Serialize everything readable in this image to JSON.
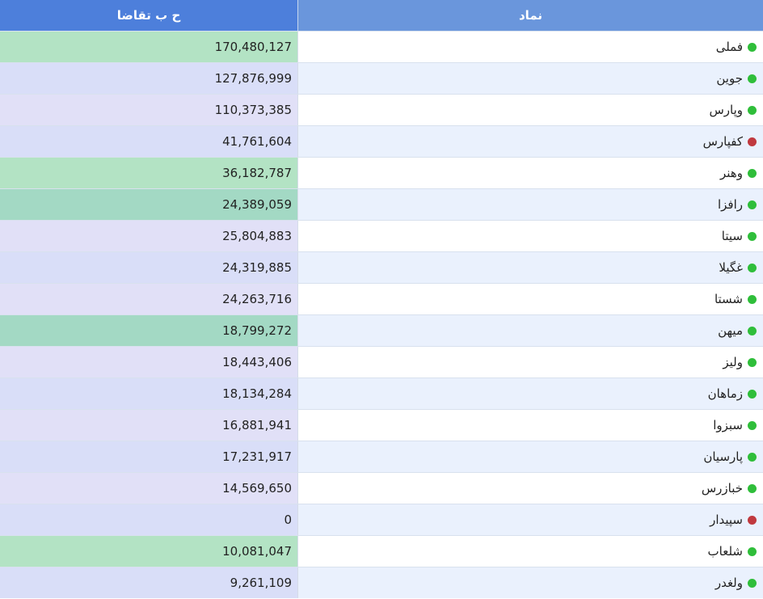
{
  "table": {
    "headers": {
      "symbol": "نماد",
      "volume": "ح ب تقاضا"
    },
    "colors": {
      "status_green": "#2fbe3a",
      "status_red": "#c0393f",
      "vol_green": "#b3e3c4",
      "vol_teal": "#a3d9c4",
      "vol_lavender": "#e1e0f7",
      "vol_blue_lavender": "#d9def8",
      "header_symbol": "#6a96dc",
      "header_volume": "#4d7fdb"
    },
    "rows": [
      {
        "symbol": "فملی",
        "status": "green",
        "volume": "170,480,127",
        "vol_color": "#b3e3c4"
      },
      {
        "symbol": "جوین",
        "status": "green",
        "volume": "127,876,999",
        "vol_color": "#d9def8"
      },
      {
        "symbol": "وپارس",
        "status": "green",
        "volume": "110,373,385",
        "vol_color": "#e1e0f7"
      },
      {
        "symbol": "کفپارس",
        "status": "red",
        "volume": "41,761,604",
        "vol_color": "#d9def8"
      },
      {
        "symbol": "وهنر",
        "status": "green",
        "volume": "36,182,787",
        "vol_color": "#b3e3c4"
      },
      {
        "symbol": "رافزا",
        "status": "green",
        "volume": "24,389,059",
        "vol_color": "#a3d9c4"
      },
      {
        "symbol": "سیتا",
        "status": "green",
        "volume": "25,804,883",
        "vol_color": "#e1e0f7"
      },
      {
        "symbol": "غگیلا",
        "status": "green",
        "volume": "24,319,885",
        "vol_color": "#d9def8"
      },
      {
        "symbol": "شستا",
        "status": "green",
        "volume": "24,263,716",
        "vol_color": "#e1e0f7"
      },
      {
        "symbol": "میهن",
        "status": "green",
        "volume": "18,799,272",
        "vol_color": "#a3d9c4"
      },
      {
        "symbol": "ولیز",
        "status": "green",
        "volume": "18,443,406",
        "vol_color": "#e1e0f7"
      },
      {
        "symbol": "زماهان",
        "status": "green",
        "volume": "18,134,284",
        "vol_color": "#d9def8"
      },
      {
        "symbol": "سبزوا",
        "status": "green",
        "volume": "16,881,941",
        "vol_color": "#e1e0f7"
      },
      {
        "symbol": "پارسیان",
        "status": "green",
        "volume": "17,231,917",
        "vol_color": "#d9def8"
      },
      {
        "symbol": "خبازرس",
        "status": "green",
        "volume": "14,569,650",
        "vol_color": "#e1e0f7"
      },
      {
        "symbol": "سپیدار",
        "status": "red",
        "volume": "0",
        "vol_color": "#d9def8"
      },
      {
        "symbol": "شلعاب",
        "status": "green",
        "volume": "10,081,047",
        "vol_color": "#b3e3c4"
      },
      {
        "symbol": "ولغدر",
        "status": "green",
        "volume": "9,261,109",
        "vol_color": "#d9def8"
      }
    ]
  }
}
